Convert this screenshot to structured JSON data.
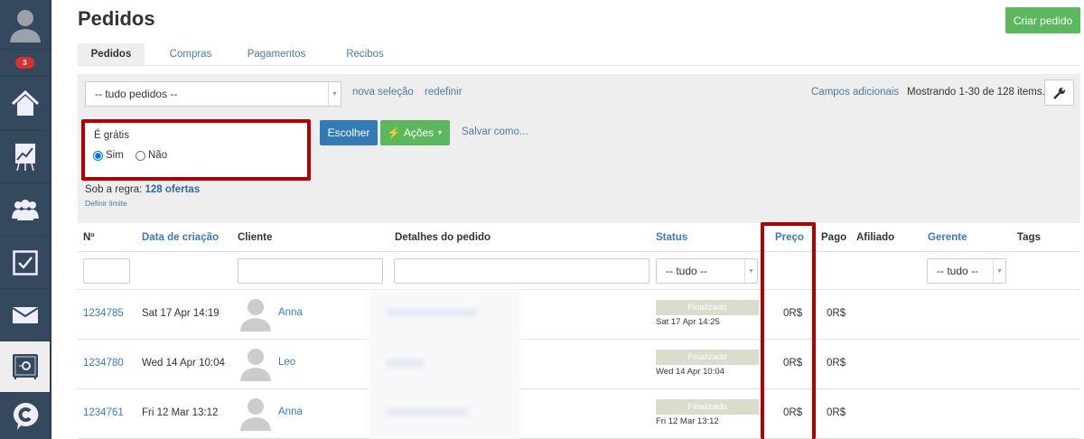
{
  "sidebar": {
    "notifications": "3",
    "items": [
      {
        "name": "home"
      },
      {
        "name": "chart"
      },
      {
        "name": "users"
      },
      {
        "name": "tasks"
      },
      {
        "name": "mail"
      },
      {
        "name": "safe",
        "active": true
      },
      {
        "name": "chat"
      }
    ]
  },
  "header": {
    "title": "Pedidos",
    "create_button": "Criar pedido"
  },
  "tabs": [
    {
      "label": "Pedidos",
      "active": true
    },
    {
      "label": "Compras"
    },
    {
      "label": "Pagamentos"
    },
    {
      "label": "Recibos"
    }
  ],
  "filters": {
    "selection": "-- tudo pedidos --",
    "new_selection": "nova seleção",
    "reset": "redefinir",
    "extra_fields": "Campos adicionais",
    "showing": "Mostrando 1-30 de 128 items.",
    "condition_label": "É grátis",
    "option_yes": "Sim",
    "option_no": "Não",
    "selected": "Sim",
    "choose": "Escolher",
    "actions": "Ações",
    "save_as": "Salvar como...",
    "rule_label": "Sob a regra:",
    "rule_value": "128 ofertas",
    "set_limit": "Definir limite"
  },
  "table": {
    "columns": [
      "Nº",
      "Data de criação",
      "Cliente",
      "Detalhes do pedido",
      "Status",
      "Preço",
      "Pago",
      "Afiliado",
      "Gerente",
      "Tags"
    ],
    "status_filter": "-- tudo --",
    "manager_filter": "-- tudo --",
    "rows": [
      {
        "id": "1234785",
        "created": "Sat 17 Apr 14:19",
        "client": "Anna",
        "status": "Finalizado",
        "status_date": "Sat 17 Apr 14:25",
        "price": "0R$",
        "paid": "0R$"
      },
      {
        "id": "1234780",
        "created": "Wed 14 Apr 10:04",
        "client": "Leo",
        "status": "Finalizado",
        "status_date": "Wed 14 Apr 10:04",
        "price": "0R$",
        "paid": "0R$"
      },
      {
        "id": "1234761",
        "created": "Fri 12 Mar 13:12",
        "client": "Anna",
        "status": "Finalizado",
        "status_date": "Fri 12 Mar 13:12",
        "price": "0R$",
        "paid": "0R$"
      }
    ]
  },
  "colors": {
    "sidebar": "#34485e",
    "primary": "#337ab7",
    "success": "#5cb85c",
    "highlight": "#b30000"
  }
}
